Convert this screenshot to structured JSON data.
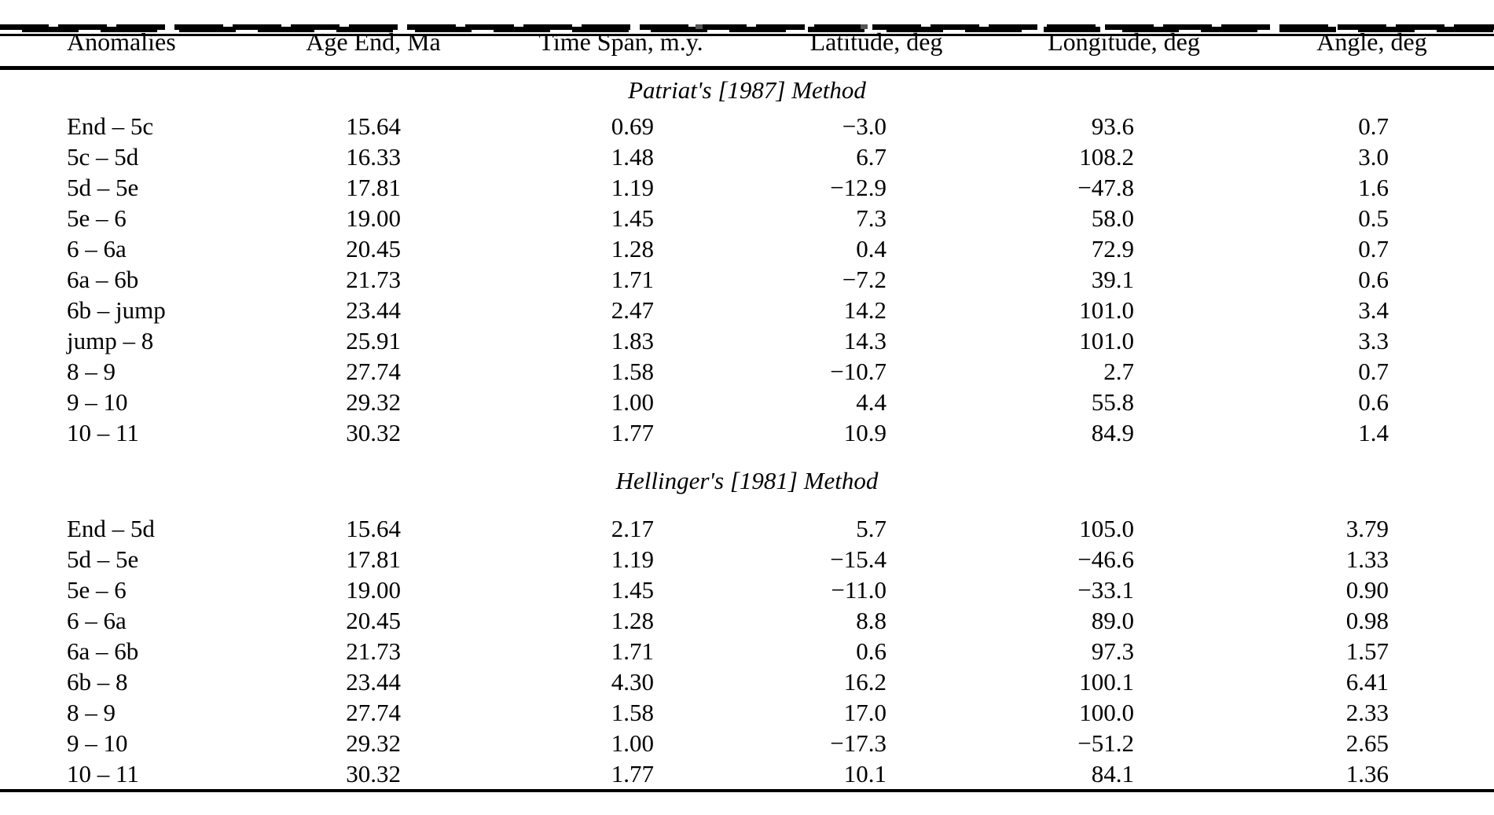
{
  "table": {
    "columns": [
      "Anomalies",
      "Age End, Ma",
      "Time Span, m.y.",
      "Latitude, deg",
      "Longitude, deg",
      "Angle, deg"
    ],
    "sections": [
      {
        "title": "Patriat's [1987] Method",
        "rows": [
          [
            "End – 5c",
            "15.64",
            "0.69",
            "−3.0",
            "93.6",
            "0.7"
          ],
          [
            "5c – 5d",
            "16.33",
            "1.48",
            "6.7",
            "108.2",
            "3.0"
          ],
          [
            "5d – 5e",
            "17.81",
            "1.19",
            "−12.9",
            "−47.8",
            "1.6"
          ],
          [
            "5e – 6",
            "19.00",
            "1.45",
            "7.3",
            "58.0",
            "0.5"
          ],
          [
            "6 – 6a",
            "20.45",
            "1.28",
            "0.4",
            "72.9",
            "0.7"
          ],
          [
            "6a – 6b",
            "21.73",
            "1.71",
            "−7.2",
            "39.1",
            "0.6"
          ],
          [
            "6b – jump",
            "23.44",
            "2.47",
            "14.2",
            "101.0",
            "3.4"
          ],
          [
            "jump – 8",
            "25.91",
            "1.83",
            "14.3",
            "101.0",
            "3.3"
          ],
          [
            "8 – 9",
            "27.74",
            "1.58",
            "−10.7",
            "2.7",
            "0.7"
          ],
          [
            "9 – 10",
            "29.32",
            "1.00",
            "4.4",
            "55.8",
            "0.6"
          ],
          [
            "10 – 11",
            "30.32",
            "1.77",
            "10.9",
            "84.9",
            "1.4"
          ]
        ]
      },
      {
        "title": "Hellinger's [1981] Method",
        "rows": [
          [
            "End – 5d",
            "15.64",
            "2.17",
            "5.7",
            "105.0",
            "3.79"
          ],
          [
            "5d – 5e",
            "17.81",
            "1.19",
            "−15.4",
            "−46.6",
            "1.33"
          ],
          [
            "5e – 6",
            "19.00",
            "1.45",
            "−11.0",
            "−33.1",
            "0.90"
          ],
          [
            "6 – 6a",
            "20.45",
            "1.28",
            "8.8",
            "89.0",
            "0.98"
          ],
          [
            "6a – 6b",
            "21.73",
            "1.71",
            "0.6",
            "97.3",
            "1.57"
          ],
          [
            "6b – 8",
            "23.44",
            "4.30",
            "16.2",
            "100.1",
            "6.41"
          ],
          [
            "8 – 9",
            "27.74",
            "1.58",
            "17.0",
            "100.0",
            "2.33"
          ],
          [
            "9 – 10",
            "29.32",
            "1.00",
            "−17.3",
            "−51.2",
            "2.65"
          ],
          [
            "10 – 11",
            "30.32",
            "1.77",
            "10.1",
            "84.1",
            "1.36"
          ]
        ]
      }
    ]
  }
}
